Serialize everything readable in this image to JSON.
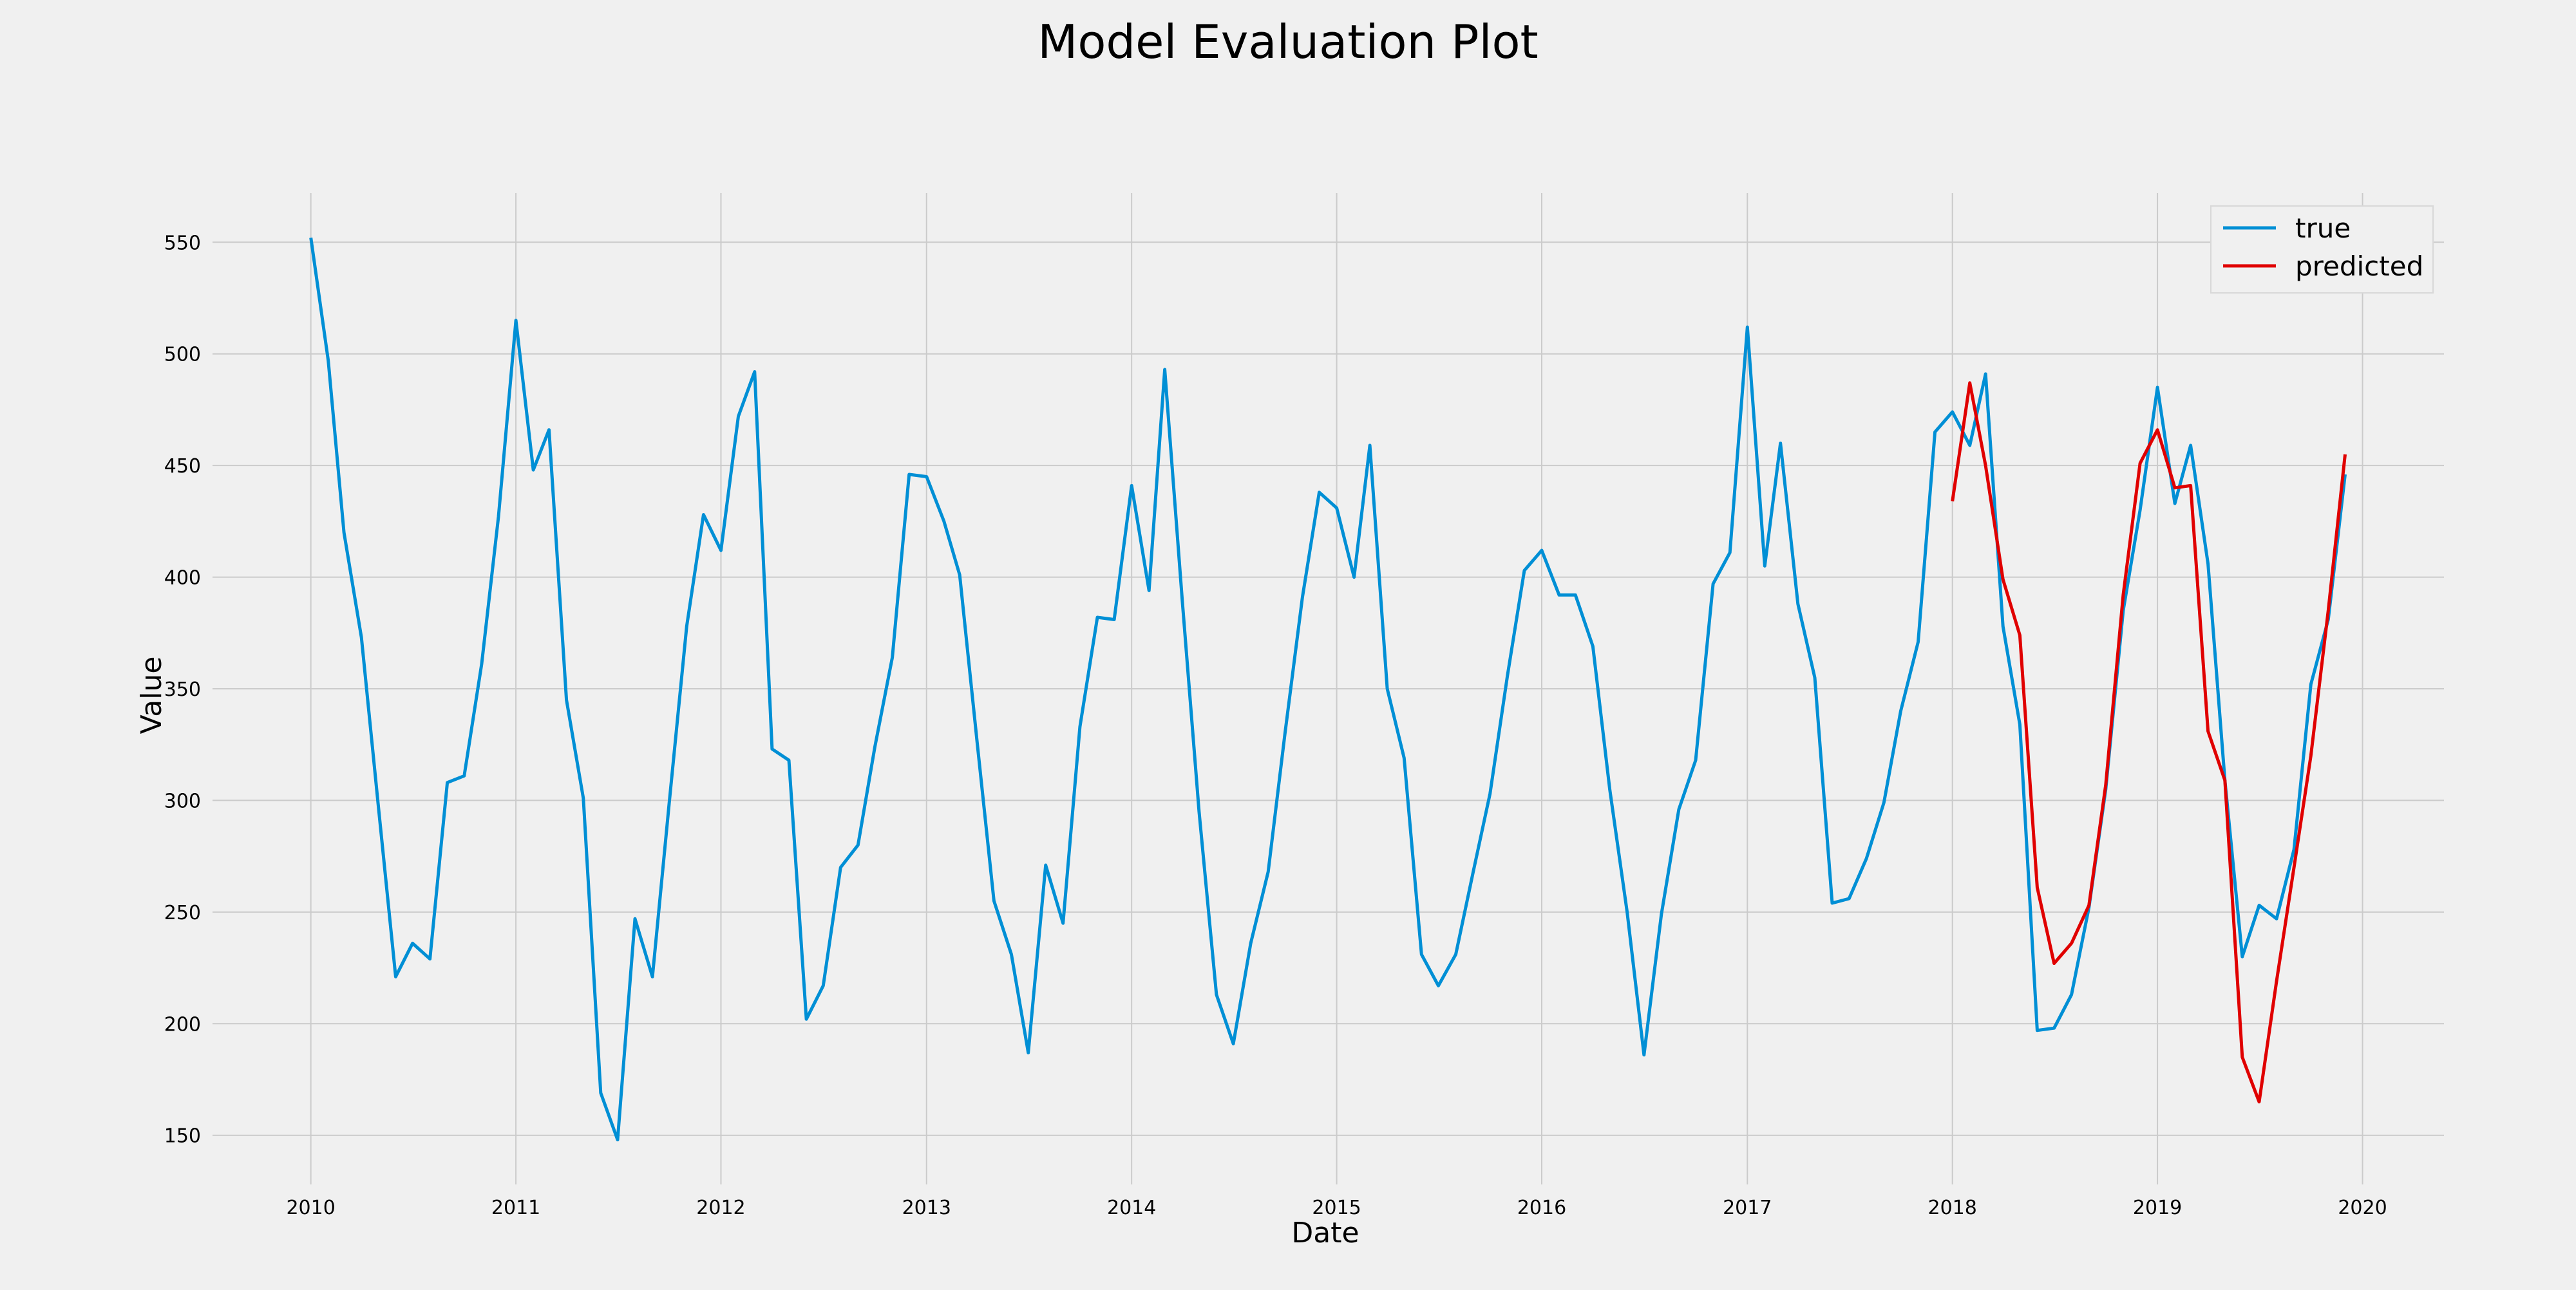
{
  "chart_data": {
    "type": "line",
    "title": "Model Evaluation Plot",
    "xlabel": "Date",
    "ylabel": "Value",
    "xlim": [
      "2009-07-10",
      "2020-05-25"
    ],
    "ylim": [
      128,
      572
    ],
    "x_ticks": [
      "2010",
      "2011",
      "2012",
      "2013",
      "2014",
      "2015",
      "2016",
      "2017",
      "2018",
      "2019",
      "2020"
    ],
    "y_ticks": [
      150,
      200,
      250,
      300,
      350,
      400,
      450,
      500,
      550
    ],
    "grid": true,
    "legend": "top-right",
    "series": [
      {
        "name": "true",
        "color": "#008fd5",
        "x": [
          "2010-01",
          "2010-02",
          "2010-03",
          "2010-04",
          "2010-05",
          "2010-06",
          "2010-07",
          "2010-08",
          "2010-09",
          "2010-10",
          "2010-11",
          "2010-12",
          "2011-01",
          "2011-02",
          "2011-03",
          "2011-04",
          "2011-05",
          "2011-06",
          "2011-07",
          "2011-08",
          "2011-09",
          "2011-10",
          "2011-11",
          "2011-12",
          "2012-01",
          "2012-02",
          "2012-03",
          "2012-04",
          "2012-05",
          "2012-06",
          "2012-07",
          "2012-08",
          "2012-09",
          "2012-10",
          "2012-11",
          "2012-12",
          "2013-01",
          "2013-02",
          "2013-03",
          "2013-04",
          "2013-05",
          "2013-06",
          "2013-07",
          "2013-08",
          "2013-09",
          "2013-10",
          "2013-11",
          "2013-12",
          "2014-01",
          "2014-02",
          "2014-03",
          "2014-04",
          "2014-05",
          "2014-06",
          "2014-07",
          "2014-08",
          "2014-09",
          "2014-10",
          "2014-11",
          "2014-12",
          "2015-01",
          "2015-02",
          "2015-03",
          "2015-04",
          "2015-05",
          "2015-06",
          "2015-07",
          "2015-08",
          "2015-09",
          "2015-10",
          "2015-11",
          "2015-12",
          "2016-01",
          "2016-02",
          "2016-03",
          "2016-04",
          "2016-05",
          "2016-06",
          "2016-07",
          "2016-08",
          "2016-09",
          "2016-10",
          "2016-11",
          "2016-12",
          "2017-01",
          "2017-02",
          "2017-03",
          "2017-04",
          "2017-05",
          "2017-06",
          "2017-07",
          "2017-08",
          "2017-09",
          "2017-10",
          "2017-11",
          "2017-12",
          "2018-01",
          "2018-02",
          "2018-03",
          "2018-04",
          "2018-05",
          "2018-06",
          "2018-07",
          "2018-08",
          "2018-09",
          "2018-10",
          "2018-11",
          "2018-12",
          "2019-01",
          "2019-02",
          "2019-03",
          "2019-04",
          "2019-05",
          "2019-06",
          "2019-07",
          "2019-08",
          "2019-09",
          "2019-10",
          "2019-11",
          "2019-12"
        ],
        "values": [
          552,
          497,
          420,
          373,
          298,
          221,
          236,
          229,
          308,
          311,
          361,
          427,
          515,
          448,
          466,
          345,
          301,
          169,
          148,
          247,
          221,
          299,
          378,
          428,
          412,
          472,
          492,
          323,
          318,
          202,
          217,
          270,
          280,
          324,
          364,
          446,
          445,
          425,
          401,
          326,
          255,
          231,
          187,
          271,
          245,
          333,
          382,
          381,
          441,
          394,
          493,
          390,
          295,
          213,
          191,
          236,
          268,
          330,
          391,
          438,
          431,
          400,
          459,
          350,
          319,
          231,
          217,
          231,
          268,
          303,
          356,
          403,
          412,
          392,
          392,
          369,
          305,
          250,
          186,
          249,
          296,
          318,
          397,
          411,
          512,
          405,
          460,
          388,
          355,
          254,
          256,
          274,
          299,
          340,
          371,
          465,
          474,
          459,
          491,
          378,
          334,
          197,
          198,
          213,
          252,
          305,
          385,
          430,
          485,
          433,
          459,
          406,
          309,
          230,
          253,
          247,
          278,
          352,
          381,
          446
        ]
      },
      {
        "name": "predicted",
        "color": "#e00000",
        "x": [
          "2018-01",
          "2018-02",
          "2018-03",
          "2018-04",
          "2018-05",
          "2018-06",
          "2018-07",
          "2018-08",
          "2018-09",
          "2018-10",
          "2018-11",
          "2018-12",
          "2019-01",
          "2019-02",
          "2019-03",
          "2019-04",
          "2019-05",
          "2019-06",
          "2019-07",
          "2019-08",
          "2019-09",
          "2019-10",
          "2019-11",
          "2019-12"
        ],
        "values": [
          434,
          487,
          450,
          399,
          374,
          261,
          227,
          236,
          253,
          307,
          392,
          451,
          466,
          440,
          441,
          331,
          309,
          185,
          165,
          219,
          270,
          320,
          385,
          455
        ]
      }
    ]
  }
}
